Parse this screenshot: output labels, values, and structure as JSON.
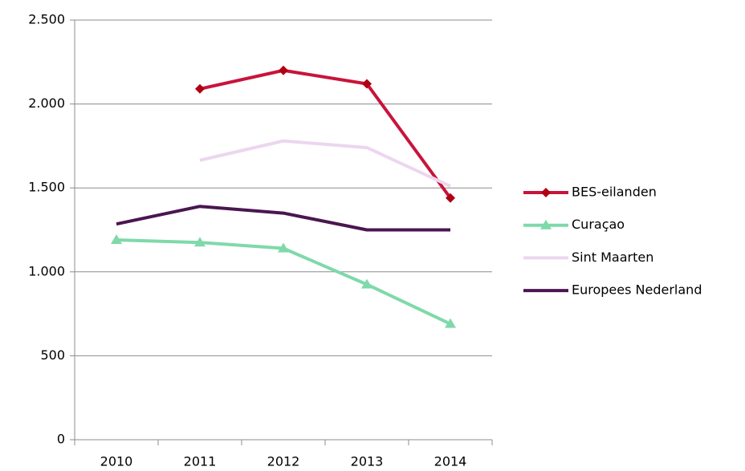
{
  "chart_data": {
    "type": "line",
    "categories": [
      "2010",
      "2011",
      "2012",
      "2013",
      "2014"
    ],
    "series": [
      {
        "name": "BES-eilanden",
        "color": "#c8143c",
        "marker": "diamond",
        "marker_color": "#b00012",
        "values": [
          null,
          2090,
          2200,
          2120,
          1440
        ]
      },
      {
        "name": "Curaçao",
        "color": "#7fd9aa",
        "marker": "triangle",
        "marker_color": "#7fd9aa",
        "values": [
          1190,
          1175,
          1140,
          925,
          690
        ]
      },
      {
        "name": "Sint Maarten",
        "color": "#ecd6ef",
        "values": [
          null,
          1665,
          1780,
          1740,
          1510
        ]
      },
      {
        "name": "Europees Nederland",
        "color": "#4a1650",
        "values": [
          1285,
          1390,
          1350,
          1250,
          1250
        ]
      }
    ],
    "ylim": [
      0,
      2500
    ],
    "yticks": [
      0,
      500,
      {
        "value": 1000,
        "label": "1.000"
      },
      {
        "value": 1500,
        "label": "1.500"
      },
      {
        "value": 2000,
        "label": "2.000"
      },
      {
        "value": 2500,
        "label": "2.500"
      }
    ],
    "grid": true,
    "legend": "right"
  }
}
